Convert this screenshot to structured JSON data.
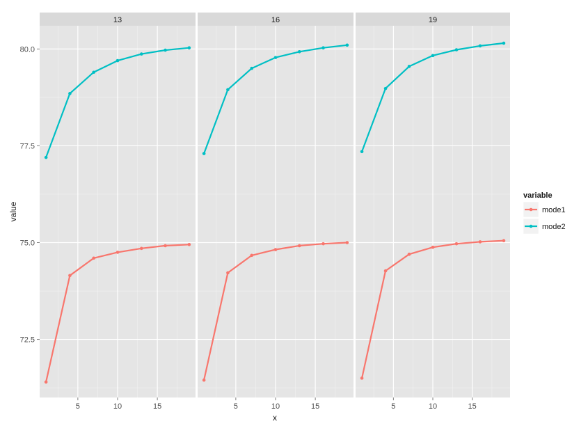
{
  "chart_data": {
    "type": "line",
    "facet_variable": "",
    "panels": [
      {
        "strip_label": "13",
        "series": [
          {
            "name": "mode1",
            "x": [
              1,
              4,
              7,
              10,
              13,
              16,
              19
            ],
            "values": [
              71.4,
              74.15,
              74.6,
              74.75,
              74.85,
              74.92,
              74.95
            ]
          },
          {
            "name": "mode2",
            "x": [
              1,
              4,
              7,
              10,
              13,
              16,
              19
            ],
            "values": [
              77.2,
              78.85,
              79.4,
              79.7,
              79.87,
              79.97,
              80.03
            ]
          }
        ]
      },
      {
        "strip_label": "16",
        "series": [
          {
            "name": "mode1",
            "x": [
              1,
              4,
              7,
              10,
              13,
              16,
              19
            ],
            "values": [
              71.45,
              74.22,
              74.67,
              74.82,
              74.92,
              74.97,
              75.0
            ]
          },
          {
            "name": "mode2",
            "x": [
              1,
              4,
              7,
              10,
              13,
              16,
              19
            ],
            "values": [
              77.3,
              78.95,
              79.5,
              79.78,
              79.93,
              80.03,
              80.1
            ]
          }
        ]
      },
      {
        "strip_label": "19",
        "series": [
          {
            "name": "mode1",
            "x": [
              1,
              4,
              7,
              10,
              13,
              16,
              19
            ],
            "values": [
              71.5,
              74.27,
              74.7,
              74.88,
              74.97,
              75.02,
              75.05
            ]
          },
          {
            "name": "mode2",
            "x": [
              1,
              4,
              7,
              10,
              13,
              16,
              19
            ],
            "values": [
              77.35,
              78.98,
              79.55,
              79.83,
              79.98,
              80.08,
              80.15
            ]
          }
        ]
      }
    ],
    "xlabel": "x",
    "ylabel": "value",
    "xlim": [
      0.2,
      19.8
    ],
    "ylim": [
      71.0,
      80.6
    ],
    "xticks": [
      5,
      10,
      15
    ],
    "yticks": [
      72.5,
      75.0,
      77.5,
      80.0
    ],
    "ytick_labels": [
      "72.5",
      "75.0",
      "77.5",
      "80.0"
    ],
    "legend": {
      "title": "variable",
      "placement": "right",
      "entries": [
        "mode1",
        "mode2"
      ]
    },
    "series_colors": {
      "mode1": "#F8766D",
      "mode2": "#00BFC4"
    },
    "panel_background": "#E5E5E5",
    "strip_background": "#D9D9D9",
    "grid": true
  }
}
